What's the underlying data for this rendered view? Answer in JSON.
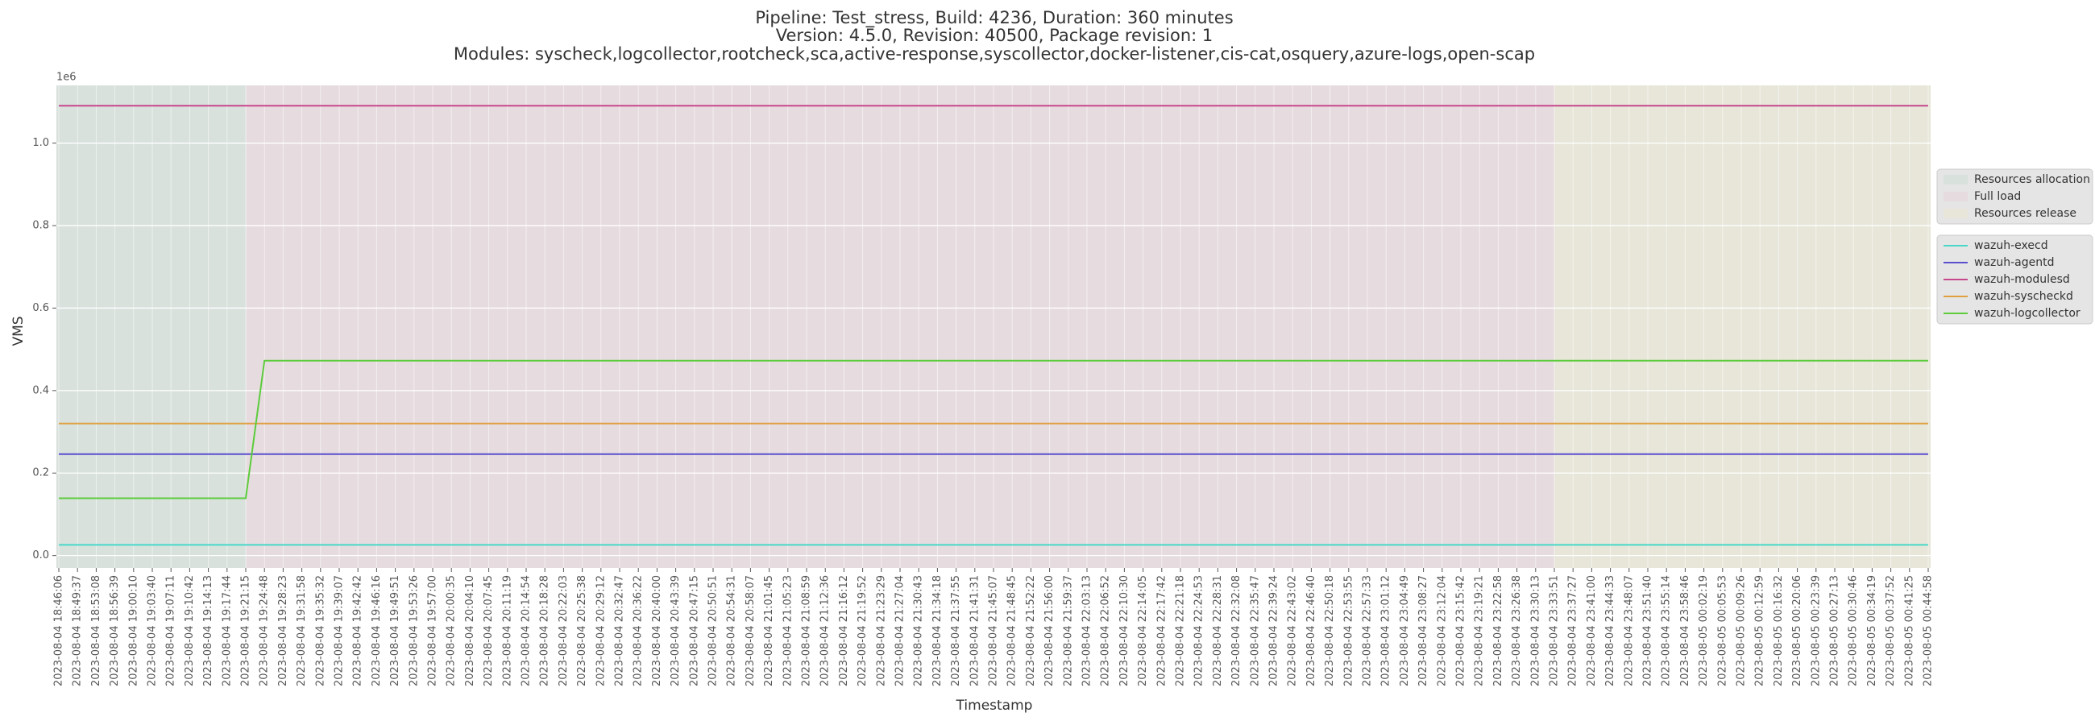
{
  "chart_data": {
    "type": "line",
    "title": [
      "Pipeline: Test_stress, Build: 4236, Duration: 360 minutes",
      "Version: 4.5.0, Revision: 40500, Package revision: 1",
      "Modules: syscheck,logcollector,rootcheck,sca,active-response,syscollector,docker-listener,cis-cat,osquery,azure-logs,open-scap"
    ],
    "xlabel": "Timestamp",
    "ylabel": "VMS",
    "y_offset_label": "1e6",
    "ylim": [
      -30000,
      1140000
    ],
    "yticks": [
      {
        "value": 0,
        "label": "0.0"
      },
      {
        "value": 200000,
        "label": "0.2"
      },
      {
        "value": 400000,
        "label": "0.4"
      },
      {
        "value": 600000,
        "label": "0.6"
      },
      {
        "value": 800000,
        "label": "0.8"
      },
      {
        "value": 1000000,
        "label": "1.0"
      }
    ],
    "grid": true,
    "legend": "outside right",
    "categories": [
      "2023-08-04 18:46:06",
      "2023-08-04 18:49:37",
      "2023-08-04 18:53:08",
      "2023-08-04 18:56:39",
      "2023-08-04 19:00:10",
      "2023-08-04 19:03:40",
      "2023-08-04 19:07:11",
      "2023-08-04 19:10:42",
      "2023-08-04 19:14:13",
      "2023-08-04 19:17:44",
      "2023-08-04 19:21:15",
      "2023-08-04 19:24:48",
      "2023-08-04 19:28:23",
      "2023-08-04 19:31:58",
      "2023-08-04 19:35:32",
      "2023-08-04 19:39:07",
      "2023-08-04 19:42:42",
      "2023-08-04 19:46:16",
      "2023-08-04 19:49:51",
      "2023-08-04 19:53:26",
      "2023-08-04 19:57:00",
      "2023-08-04 20:00:35",
      "2023-08-04 20:04:10",
      "2023-08-04 20:07:45",
      "2023-08-04 20:11:19",
      "2023-08-04 20:14:54",
      "2023-08-04 20:18:28",
      "2023-08-04 20:22:03",
      "2023-08-04 20:25:38",
      "2023-08-04 20:29:12",
      "2023-08-04 20:32:47",
      "2023-08-04 20:36:22",
      "2023-08-04 20:40:00",
      "2023-08-04 20:43:39",
      "2023-08-04 20:47:15",
      "2023-08-04 20:50:51",
      "2023-08-04 20:54:31",
      "2023-08-04 20:58:07",
      "2023-08-04 21:01:45",
      "2023-08-04 21:05:23",
      "2023-08-04 21:08:59",
      "2023-08-04 21:12:36",
      "2023-08-04 21:16:12",
      "2023-08-04 21:19:52",
      "2023-08-04 21:23:29",
      "2023-08-04 21:27:04",
      "2023-08-04 21:30:43",
      "2023-08-04 21:34:18",
      "2023-08-04 21:37:55",
      "2023-08-04 21:41:31",
      "2023-08-04 21:45:07",
      "2023-08-04 21:48:45",
      "2023-08-04 21:52:22",
      "2023-08-04 21:56:00",
      "2023-08-04 21:59:37",
      "2023-08-04 22:03:13",
      "2023-08-04 22:06:52",
      "2023-08-04 22:10:30",
      "2023-08-04 22:14:05",
      "2023-08-04 22:17:42",
      "2023-08-04 22:21:18",
      "2023-08-04 22:24:53",
      "2023-08-04 22:28:31",
      "2023-08-04 22:32:08",
      "2023-08-04 22:35:47",
      "2023-08-04 22:39:24",
      "2023-08-04 22:43:02",
      "2023-08-04 22:46:40",
      "2023-08-04 22:50:18",
      "2023-08-04 22:53:55",
      "2023-08-04 22:57:33",
      "2023-08-04 23:01:12",
      "2023-08-04 23:04:49",
      "2023-08-04 23:08:27",
      "2023-08-04 23:12:04",
      "2023-08-04 23:15:42",
      "2023-08-04 23:19:21",
      "2023-08-04 23:22:58",
      "2023-08-04 23:26:38",
      "2023-08-04 23:30:13",
      "2023-08-04 23:33:51",
      "2023-08-04 23:37:27",
      "2023-08-04 23:41:00",
      "2023-08-04 23:44:33",
      "2023-08-04 23:48:07",
      "2023-08-04 23:51:40",
      "2023-08-04 23:55:14",
      "2023-08-04 23:58:46",
      "2023-08-05 00:02:19",
      "2023-08-05 00:05:53",
      "2023-08-05 00:09:26",
      "2023-08-05 00:12:59",
      "2023-08-05 00:16:32",
      "2023-08-05 00:20:06",
      "2023-08-05 00:23:39",
      "2023-08-05 00:27:13",
      "2023-08-05 00:30:46",
      "2023-08-05 00:34:19",
      "2023-08-05 00:37:52",
      "2023-08-05 00:41:25",
      "2023-08-05 00:44:58"
    ],
    "regions": [
      {
        "name": "Resources allocation",
        "color": "#d8e1dc",
        "start": "2023-08-04 18:46:06",
        "end": "2023-08-04 19:21:15"
      },
      {
        "name": "Full load",
        "color": "#e6dbdf",
        "start": "2023-08-04 19:21:15",
        "end": "2023-08-04 23:33:51"
      },
      {
        "name": "Resources release",
        "color": "#e7e6d9",
        "start": "2023-08-04 23:33:51",
        "end": "2023-08-05 00:44:58"
      }
    ],
    "series": [
      {
        "name": "wazuh-execd",
        "color": "#48d8c8",
        "values": [
          26000,
          26000,
          26000,
          26000,
          26000,
          26000,
          26000,
          26000,
          26000,
          26000,
          26000,
          26000,
          26000,
          26000,
          26000,
          26000,
          26000,
          26000,
          26000,
          26000,
          26000,
          26000,
          26000,
          26000,
          26000,
          26000,
          26000,
          26000,
          26000,
          26000,
          26000,
          26000,
          26000,
          26000,
          26000,
          26000,
          26000,
          26000,
          26000,
          26000,
          26000,
          26000,
          26000,
          26000,
          26000,
          26000,
          26000,
          26000,
          26000,
          26000,
          26000,
          26000,
          26000,
          26000,
          26000,
          26000,
          26000,
          26000,
          26000,
          26000,
          26000,
          26000,
          26000,
          26000,
          26000,
          26000,
          26000,
          26000,
          26000,
          26000,
          26000,
          26000,
          26000,
          26000,
          26000,
          26000,
          26000,
          26000,
          26000,
          26000,
          26000,
          26000,
          26000,
          26000,
          26000,
          26000,
          26000,
          26000,
          26000,
          26000,
          26000,
          26000,
          26000,
          26000,
          26000,
          26000,
          26000,
          26000,
          26000,
          26000,
          26000
        ]
      },
      {
        "name": "wazuh-agentd",
        "color": "#5a4fcf",
        "values": [
          246000,
          246000,
          246000,
          246000,
          246000,
          246000,
          246000,
          246000,
          246000,
          246000,
          246000,
          246000,
          246000,
          246000,
          246000,
          246000,
          246000,
          246000,
          246000,
          246000,
          246000,
          246000,
          246000,
          246000,
          246000,
          246000,
          246000,
          246000,
          246000,
          246000,
          246000,
          246000,
          246000,
          246000,
          246000,
          246000,
          246000,
          246000,
          246000,
          246000,
          246000,
          246000,
          246000,
          246000,
          246000,
          246000,
          246000,
          246000,
          246000,
          246000,
          246000,
          246000,
          246000,
          246000,
          246000,
          246000,
          246000,
          246000,
          246000,
          246000,
          246000,
          246000,
          246000,
          246000,
          246000,
          246000,
          246000,
          246000,
          246000,
          246000,
          246000,
          246000,
          246000,
          246000,
          246000,
          246000,
          246000,
          246000,
          246000,
          246000,
          246000,
          246000,
          246000,
          246000,
          246000,
          246000,
          246000,
          246000,
          246000,
          246000,
          246000,
          246000,
          246000,
          246000,
          246000,
          246000,
          246000,
          246000,
          246000,
          246000,
          246000
        ]
      },
      {
        "name": "wazuh-modulesd",
        "color": "#c8478c",
        "values": [
          1090600,
          1090600,
          1090600,
          1090600,
          1090600,
          1090600,
          1090600,
          1090600,
          1090600,
          1090600,
          1090600,
          1090600,
          1090600,
          1090600,
          1090600,
          1090600,
          1090600,
          1090600,
          1090600,
          1090600,
          1090600,
          1090600,
          1090600,
          1090600,
          1090600,
          1090600,
          1090600,
          1090600,
          1090600,
          1090600,
          1090600,
          1090600,
          1090600,
          1090600,
          1090600,
          1090600,
          1090600,
          1090600,
          1090600,
          1090600,
          1090600,
          1090600,
          1090600,
          1090600,
          1090600,
          1090600,
          1090600,
          1090600,
          1090600,
          1090600,
          1090600,
          1090600,
          1090600,
          1090600,
          1090600,
          1090600,
          1090600,
          1090600,
          1090600,
          1090600,
          1090600,
          1090600,
          1090600,
          1090600,
          1090600,
          1090600,
          1090600,
          1090600,
          1090600,
          1090600,
          1090600,
          1090600,
          1090600,
          1090600,
          1090600,
          1090600,
          1090600,
          1090600,
          1090600,
          1090600,
          1090600,
          1090600,
          1090600,
          1090600,
          1090600,
          1090600,
          1090600,
          1090600,
          1090600,
          1090600,
          1090600,
          1090600,
          1090600,
          1090600,
          1090600,
          1090600,
          1090600,
          1090600,
          1090600,
          1090600,
          1090600
        ]
      },
      {
        "name": "wazuh-syscheckd",
        "color": "#e0a040",
        "values": [
          320000,
          320000,
          320000,
          320000,
          320000,
          320000,
          320000,
          320000,
          320000,
          320000,
          320000,
          320000,
          320000,
          320000,
          320000,
          320000,
          320000,
          320000,
          320000,
          320000,
          320000,
          320000,
          320000,
          320000,
          320000,
          320000,
          320000,
          320000,
          320000,
          320000,
          320000,
          320000,
          320000,
          320000,
          320000,
          320000,
          320000,
          320000,
          320000,
          320000,
          320000,
          320000,
          320000,
          320000,
          320000,
          320000,
          320000,
          320000,
          320000,
          320000,
          320000,
          320000,
          320000,
          320000,
          320000,
          320000,
          320000,
          320000,
          320000,
          320000,
          320000,
          320000,
          320000,
          320000,
          320000,
          320000,
          320000,
          320000,
          320000,
          320000,
          320000,
          320000,
          320000,
          320000,
          320000,
          320000,
          320000,
          320000,
          320000,
          320000,
          320000,
          320000,
          320000,
          320000,
          320000,
          320000,
          320000,
          320000,
          320000,
          320000,
          320000,
          320000,
          320000,
          320000,
          320000,
          320000,
          320000,
          320000,
          320000,
          320000,
          320000
        ]
      },
      {
        "name": "wazuh-logcollector",
        "color": "#5ccc3c",
        "values": [
          139000,
          139000,
          139000,
          139000,
          139000,
          139000,
          139000,
          139000,
          139000,
          139000,
          139000,
          472500,
          472500,
          472500,
          472500,
          472500,
          472500,
          472500,
          472500,
          472500,
          472500,
          472500,
          472500,
          472500,
          472500,
          472500,
          472500,
          472500,
          472500,
          472500,
          472500,
          472500,
          472500,
          472500,
          472500,
          472500,
          472500,
          472500,
          472500,
          472500,
          472500,
          472500,
          472500,
          472500,
          472500,
          472500,
          472500,
          472500,
          472500,
          472500,
          472500,
          472500,
          472500,
          472500,
          472500,
          472500,
          472500,
          472500,
          472500,
          472500,
          472500,
          472500,
          472500,
          472500,
          472500,
          472500,
          472500,
          472500,
          472500,
          472500,
          472500,
          472500,
          472500,
          472500,
          472500,
          472500,
          472500,
          472500,
          472500,
          472500,
          472500,
          472500,
          472500,
          472500,
          472500,
          472500,
          472500,
          472500,
          472500,
          472500,
          472500,
          472500,
          472500,
          472500,
          472500,
          472500,
          472500,
          472500,
          472500,
          472500,
          472500
        ]
      }
    ]
  }
}
